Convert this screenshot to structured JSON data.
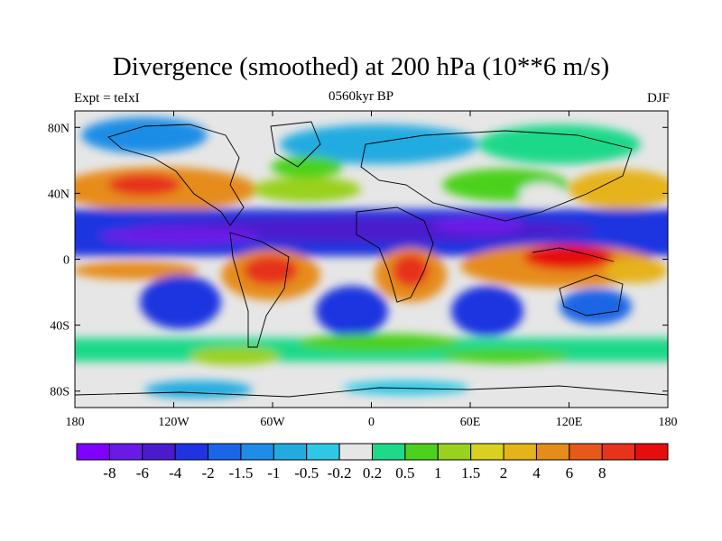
{
  "title": "Divergence (smoothed) at 200 hPa (10**6 m/s)",
  "left_string": "Expt = teIxI",
  "center_string": "0560kyr BP",
  "right_string": "DJF",
  "axes": {
    "x_ticks": [
      "180",
      "120W",
      "60W",
      "0",
      "60E",
      "120E",
      "180"
    ],
    "y_ticks": [
      "80N",
      "40N",
      "0",
      "40S",
      "80S"
    ]
  },
  "colorbar": {
    "colors": [
      "#7f00ff",
      "#6a1ae6",
      "#4b1acc",
      "#1f34e0",
      "#1a66e6",
      "#1f8de6",
      "#23abe0",
      "#2ec8e6",
      "#e6e6e6",
      "#1fd98a",
      "#4cd11f",
      "#99d11f",
      "#d9d11f",
      "#e6b31a",
      "#e68c1a",
      "#e6591a",
      "#e6331a",
      "#e60d0d"
    ],
    "labels": [
      "-8",
      "-6",
      "-4",
      "-2",
      "-1.5",
      "-1",
      "-0.5",
      "-0.2",
      "0.2",
      "0.5",
      "1",
      "1.5",
      "2",
      "4",
      "6",
      "8"
    ]
  },
  "chart_data": {
    "type": "heatmap",
    "title": "Divergence (smoothed) at 200 hPa (10**6 m/s)",
    "variable": "Divergence (smoothed) at 200 hPa",
    "units": "10**6 m/s",
    "experiment": "teIxI",
    "period": "0560kyr BP",
    "season": "DJF",
    "xlim": [
      -180,
      180
    ],
    "ylim": [
      -90,
      90
    ],
    "levels": [
      -8,
      -6,
      -4,
      -2,
      -1.5,
      -1,
      -0.5,
      -0.2,
      0.2,
      0.5,
      1,
      1.5,
      2,
      4,
      6,
      8
    ],
    "features": [
      {
        "name": "Tropical convergence band",
        "lon": 0,
        "lat": 15,
        "value": -4
      },
      {
        "name": "South America divergence max",
        "lon": -55,
        "lat": -10,
        "value": 6
      },
      {
        "name": "Africa divergence max",
        "lon": 25,
        "lat": -10,
        "value": 6
      },
      {
        "name": "Maritime continent divergence max",
        "lon": 120,
        "lat": -5,
        "value": 8
      },
      {
        "name": "SE Pacific convergence",
        "lon": -120,
        "lat": -25,
        "value": -4
      },
      {
        "name": "South Atlantic convergence",
        "lon": -15,
        "lat": -25,
        "value": -4
      },
      {
        "name": "South Indian convergence",
        "lon": 70,
        "lat": -25,
        "value": -2
      },
      {
        "name": "North Pacific divergence",
        "lon": 175,
        "lat": 35,
        "value": 2
      },
      {
        "name": "North Atlantic divergence",
        "lon": -30,
        "lat": 45,
        "value": 1.5
      }
    ]
  }
}
